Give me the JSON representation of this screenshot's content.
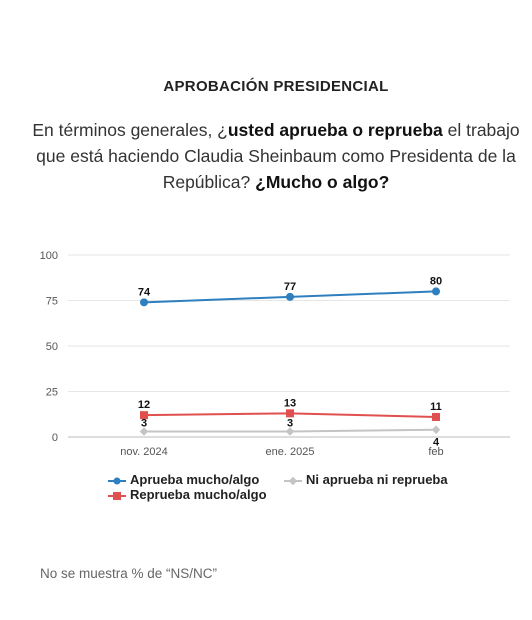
{
  "header": {
    "title": "APROBACIÓN PRESIDENCIAL",
    "question_p1": "En términos generales, ¿",
    "question_b1": "usted aprueba o reprueba",
    "question_p2": " el trabajo que está haciendo Claudia Sheinbaum como Presidenta de la República? ",
    "question_b2": "¿Mucho o algo?"
  },
  "chart_data": {
    "type": "line",
    "categories": [
      "nov. 2024",
      "ene. 2025",
      "feb"
    ],
    "ylim": [
      0,
      100
    ],
    "yticks": [
      0,
      25,
      50,
      75,
      100
    ],
    "grid": true,
    "legend_position": "bottom",
    "series": [
      {
        "name": "Aprueba mucho/algo",
        "values": [
          74,
          77,
          80
        ],
        "color": "#2e7fc0",
        "marker": "circle"
      },
      {
        "name": "Reprueba mucho/algo",
        "values": [
          12,
          13,
          11
        ],
        "color": "#e0504f",
        "marker": "square"
      },
      {
        "name": "Ni aprueba ni reprueba",
        "values": [
          3,
          3,
          4
        ],
        "color": "#c4c4c4",
        "marker": "diamond"
      }
    ]
  },
  "footnote": "No se muestra % de “NS/NC”"
}
